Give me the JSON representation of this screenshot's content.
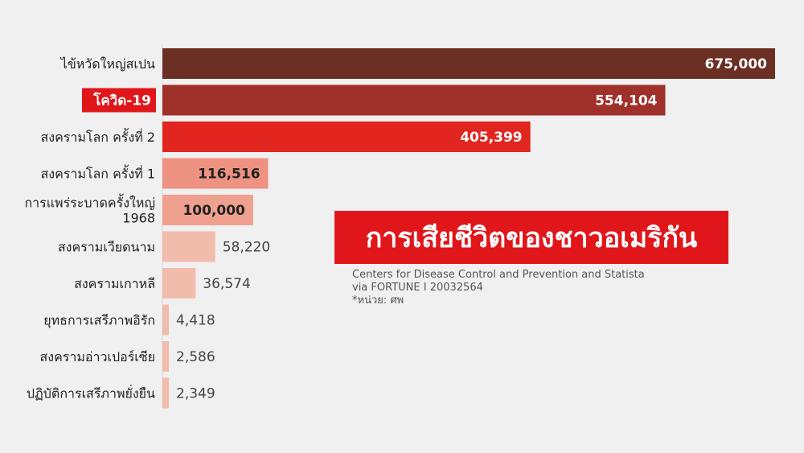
{
  "chart_data": {
    "type": "bar",
    "orientation": "horizontal",
    "title": "การเสียชีวิตของชาวอเมริกัน",
    "source": [
      "Centers for Disease Control and Prevention and Statista",
      "via FORTUNE I 20032564",
      "*หน่วย: ศพ"
    ],
    "categories": [
      [
        "ไข้หวัดใหญ่สเปน"
      ],
      [
        "โควิด-19"
      ],
      [
        "สงครามโลก ครั้งที่ 2"
      ],
      [
        "สงครามโลก ครั้งที่ 1"
      ],
      [
        "การแพร่ระบาดครั้งใหญ่",
        "1968"
      ],
      [
        "สงครามเวียดนาม"
      ],
      [
        "สงครามเกาหลี"
      ],
      [
        "ยุทธการเสรีภาพอิรัก"
      ],
      [
        "สงครามอ่าวเปอร์เซีย"
      ],
      [
        "ปฏิบัติการเสรีภาพยั่งยืน"
      ]
    ],
    "values": [
      675000,
      554104,
      405399,
      116516,
      100000,
      58220,
      36574,
      4418,
      2586,
      2349
    ],
    "value_labels": [
      "675,000",
      "554,104",
      "405,399",
      "116,516",
      "100,000",
      "58,220",
      "36,574",
      "4,418",
      "2,586",
      "2,349"
    ],
    "colors": [
      "#6b2f23",
      "#a0302a",
      "#e0261f",
      "#ee9281",
      "#f0a08e",
      "#f2bcad",
      "#f2bcad",
      "#f2bcad",
      "#f2bcad",
      "#f2bcad"
    ],
    "highlight_index": 1,
    "highlight_color": "#e0161b",
    "legend": "none",
    "grid": false
  }
}
